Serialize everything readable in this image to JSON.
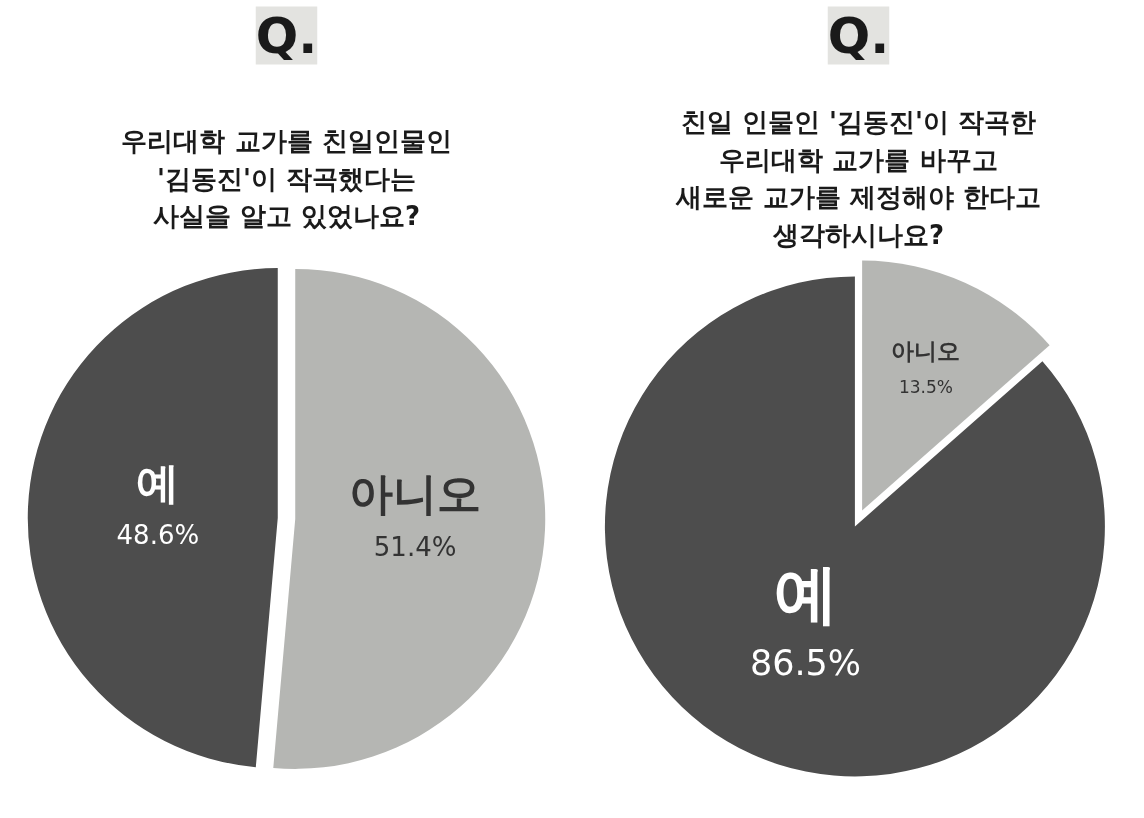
{
  "chart_data": [
    {
      "type": "pie",
      "title": "Q.",
      "subtitle": "우리대학 교가를 친일인물인\n'김동진'이 작곡했다는\n사실을 알고 있었나요?",
      "categories": [
        "아니오",
        "예"
      ],
      "values": [
        51.4,
        48.6
      ],
      "colors": [
        "#b5b6b3",
        "#4d4d4d"
      ],
      "value_labels": [
        "51.4%",
        "48.6%"
      ]
    },
    {
      "type": "pie",
      "title": "Q.",
      "subtitle": "친일 인물인 '김동진'이 작곡한\n우리대학 교가를 바꾸고\n새로운 교가를 제정해야 한다고\n생각하시나요?",
      "categories": [
        "아니오",
        "예"
      ],
      "values": [
        13.5,
        86.5
      ],
      "colors": [
        "#b5b6b3",
        "#4d4d4d"
      ],
      "value_labels": [
        "13.5%",
        "86.5%"
      ]
    }
  ]
}
